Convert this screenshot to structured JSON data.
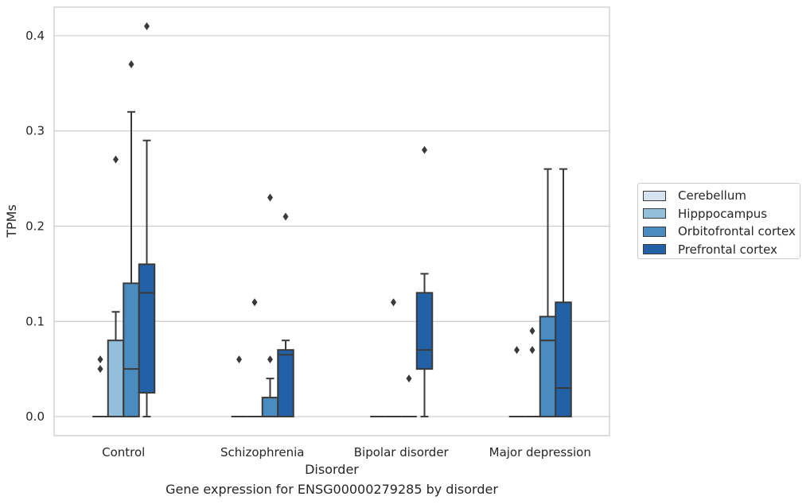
{
  "caption": "Gene expression for ENSG00000279285 by disorder",
  "colors": {
    "Cerebellum": "#d5e3f1",
    "Hipppocampus": "#94bfdb",
    "Orbitofrontal cortex": "#4a8cbf",
    "Prefrontal cortex": "#2261a6",
    "median_line": "#3a3a3a",
    "grid": "#cccccc"
  },
  "chart_data": {
    "type": "box",
    "title": "",
    "xlabel": "Disorder",
    "ylabel": "TPMs",
    "ylim": [
      -0.02,
      0.43
    ],
    "yticks": [
      "0.0",
      "0.1",
      "0.2",
      "0.3",
      "0.4"
    ],
    "grid": true,
    "legend_position": "right",
    "categories": [
      "Control",
      "Schizophrenia",
      "Bipolar disorder",
      "Major depression"
    ],
    "series": [
      {
        "name": "Cerebellum",
        "boxes": [
          {
            "category": "Control",
            "q1": 0,
            "median": 0,
            "q3": 0,
            "whisker_low": 0,
            "whisker_high": 0,
            "outliers": [
              0.05,
              0.06
            ]
          },
          {
            "category": "Schizophrenia",
            "q1": 0,
            "median": 0,
            "q3": 0,
            "whisker_low": 0,
            "whisker_high": 0,
            "outliers": [
              0.06
            ]
          },
          {
            "category": "Bipolar disorder",
            "q1": 0,
            "median": 0,
            "q3": 0,
            "whisker_low": 0,
            "whisker_high": 0,
            "outliers": []
          },
          {
            "category": "Major depression",
            "q1": 0,
            "median": 0,
            "q3": 0,
            "whisker_low": 0,
            "whisker_high": 0,
            "outliers": [
              0.07
            ]
          }
        ]
      },
      {
        "name": "Hipppocampus",
        "boxes": [
          {
            "category": "Control",
            "q1": 0,
            "median": 0,
            "q3": 0.08,
            "whisker_low": 0,
            "whisker_high": 0.11,
            "outliers": [
              0.27
            ]
          },
          {
            "category": "Schizophrenia",
            "q1": 0,
            "median": 0,
            "q3": 0,
            "whisker_low": 0,
            "whisker_high": 0,
            "outliers": [
              0.12
            ]
          },
          {
            "category": "Bipolar disorder",
            "q1": 0,
            "median": 0,
            "q3": 0,
            "whisker_low": 0,
            "whisker_high": 0,
            "outliers": [
              0.12
            ]
          },
          {
            "category": "Major depression",
            "q1": 0,
            "median": 0,
            "q3": 0,
            "whisker_low": 0,
            "whisker_high": 0,
            "outliers": [
              0.07,
              0.09
            ]
          }
        ]
      },
      {
        "name": "Orbitofrontal cortex",
        "boxes": [
          {
            "category": "Control",
            "q1": 0,
            "median": 0.05,
            "q3": 0.14,
            "whisker_low": 0,
            "whisker_high": 0.32,
            "outliers": [
              0.37
            ]
          },
          {
            "category": "Schizophrenia",
            "q1": 0,
            "median": 0,
            "q3": 0.02,
            "whisker_low": 0,
            "whisker_high": 0.04,
            "outliers": [
              0.06,
              0.23
            ]
          },
          {
            "category": "Bipolar disorder",
            "q1": 0,
            "median": 0,
            "q3": 0,
            "whisker_low": 0,
            "whisker_high": 0,
            "outliers": [
              0.04
            ]
          },
          {
            "category": "Major depression",
            "q1": 0,
            "median": 0.08,
            "q3": 0.105,
            "whisker_low": 0,
            "whisker_high": 0.26,
            "outliers": []
          }
        ]
      },
      {
        "name": "Prefrontal cortex",
        "boxes": [
          {
            "category": "Control",
            "q1": 0.025,
            "median": 0.13,
            "q3": 0.16,
            "whisker_low": 0,
            "whisker_high": 0.29,
            "outliers": [
              0.41
            ]
          },
          {
            "category": "Schizophrenia",
            "q1": 0,
            "median": 0.065,
            "q3": 0.07,
            "whisker_low": 0,
            "whisker_high": 0.08,
            "outliers": [
              0.21
            ]
          },
          {
            "category": "Bipolar disorder",
            "q1": 0.05,
            "median": 0.07,
            "q3": 0.13,
            "whisker_low": 0,
            "whisker_high": 0.15,
            "outliers": [
              0.28
            ]
          },
          {
            "category": "Major depression",
            "q1": 0,
            "median": 0.03,
            "q3": 0.12,
            "whisker_low": 0,
            "whisker_high": 0.26,
            "outliers": []
          }
        ]
      }
    ]
  }
}
